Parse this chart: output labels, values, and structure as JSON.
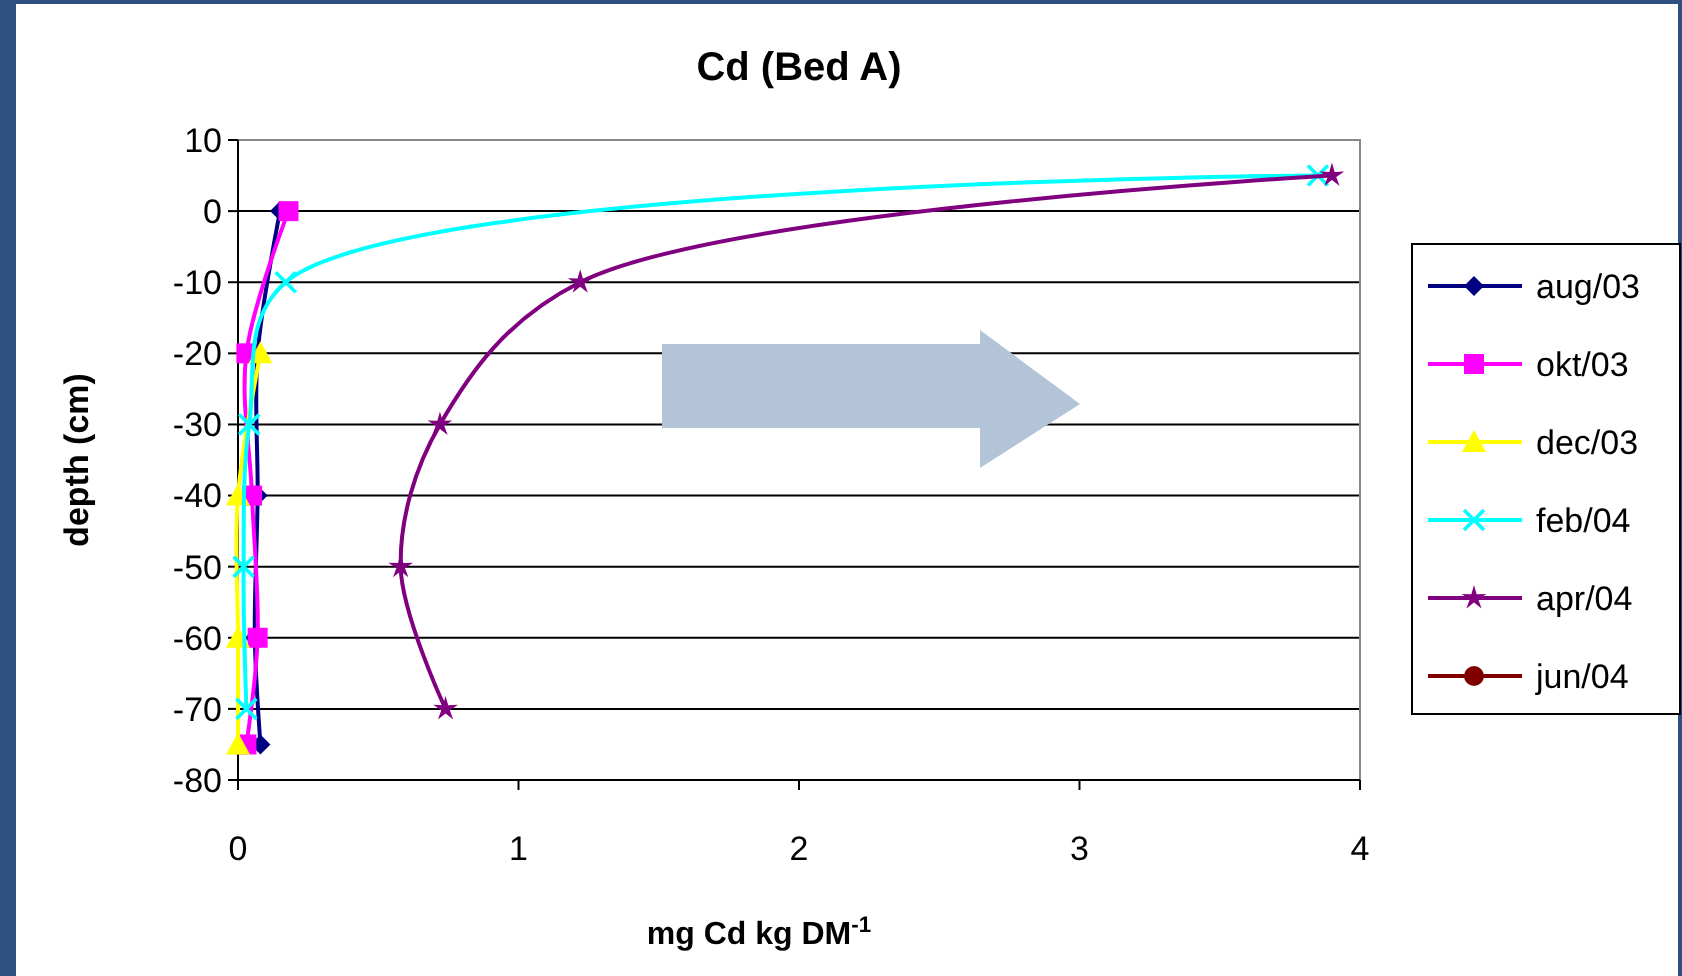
{
  "chart_data": {
    "type": "line",
    "title": "Cd (Bed A)",
    "xlabel": "mg Cd kg DM$^{-1}$",
    "ylabel": "depth (cm)",
    "xlim": [
      0,
      4
    ],
    "xticks": [
      0,
      1,
      2,
      3,
      4
    ],
    "ylim": [
      -80,
      10
    ],
    "yticks": [
      -80,
      -70,
      -60,
      -50,
      -40,
      -30,
      -20,
      -10,
      0,
      10
    ],
    "grid": "y",
    "legend": "right",
    "series": [
      {
        "name": "aug/03",
        "color": "#000080",
        "marker": "diamond",
        "x": [
          0.15,
          0.07,
          0.07,
          0.06,
          0.08
        ],
        "values": [
          0,
          -20,
          -40,
          -60,
          -75
        ]
      },
      {
        "name": "okt/03",
        "color": "#ff00ff",
        "marker": "square",
        "x": [
          0.18,
          0.03,
          0.05,
          0.07,
          0.03
        ],
        "values": [
          0,
          -20,
          -40,
          -60,
          -75
        ]
      },
      {
        "name": "dec/03",
        "color": "#ffff00",
        "marker": "triangle",
        "x": [
          0.08,
          0.0,
          0.0,
          0.0
        ],
        "values": [
          -20,
          -40,
          -60,
          -75
        ]
      },
      {
        "name": "feb/04",
        "color": "#00ffff",
        "marker": "cross",
        "x": [
          3.85,
          0.17,
          0.04,
          0.02,
          0.03
        ],
        "values": [
          5,
          -10,
          -30,
          -50,
          -70
        ]
      },
      {
        "name": "apr/04",
        "color": "#800080",
        "marker": "star",
        "x": [
          3.9,
          1.22,
          0.72,
          0.58,
          0.74
        ],
        "values": [
          5,
          -10,
          -30,
          -50,
          -70
        ]
      },
      {
        "name": "jun/04",
        "color": "#800000",
        "marker": "circle"
      }
    ]
  }
}
